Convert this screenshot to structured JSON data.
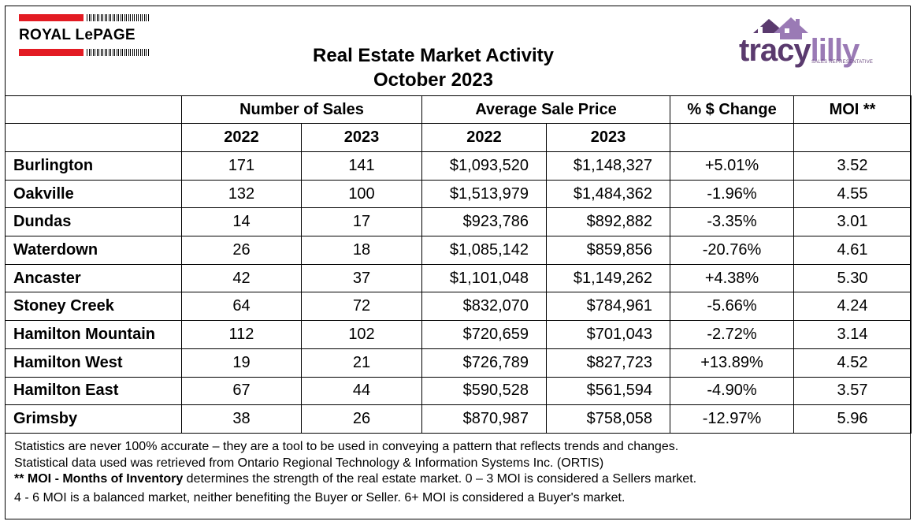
{
  "header": {
    "brand_left": "ROYAL LePAGE",
    "title_line1": "Real Estate Market Activity",
    "title_line2": "October 2023",
    "brand_right_part1": "tracy",
    "brand_right_part2": "lilly",
    "brand_right_sub": "SALES REPRESENTATIVE"
  },
  "table": {
    "group_headers": [
      "Number of Sales",
      "Average Sale Price",
      "% $ Change",
      "MOI **"
    ],
    "year_headers": [
      "2022",
      "2023",
      "2022",
      "2023"
    ],
    "rows": [
      {
        "city": "Burlington",
        "sales_2022": "171",
        "sales_2023": "141",
        "price_2022": "$1,093,520",
        "price_2023": "$1,148,327",
        "change": "+5.01%",
        "moi": "3.52"
      },
      {
        "city": "Oakville",
        "sales_2022": "132",
        "sales_2023": "100",
        "price_2022": "$1,513,979",
        "price_2023": "$1,484,362",
        "change": "-1.96%",
        "moi": "4.55"
      },
      {
        "city": "Dundas",
        "sales_2022": "14",
        "sales_2023": "17",
        "price_2022": "$923,786",
        "price_2023": "$892,882",
        "change": "-3.35%",
        "moi": "3.01"
      },
      {
        "city": "Waterdown",
        "sales_2022": "26",
        "sales_2023": "18",
        "price_2022": "$1,085,142",
        "price_2023": "$859,856",
        "change": "-20.76%",
        "moi": "4.61"
      },
      {
        "city": "Ancaster",
        "sales_2022": "42",
        "sales_2023": "37",
        "price_2022": "$1,101,048",
        "price_2023": "$1,149,262",
        "change": "+4.38%",
        "moi": "5.30"
      },
      {
        "city": "Stoney Creek",
        "sales_2022": "64",
        "sales_2023": "72",
        "price_2022": "$832,070",
        "price_2023": "$784,961",
        "change": "-5.66%",
        "moi": "4.24"
      },
      {
        "city": "Hamilton Mountain",
        "sales_2022": "112",
        "sales_2023": "102",
        "price_2022": "$720,659",
        "price_2023": "$701,043",
        "change": "-2.72%",
        "moi": "3.14"
      },
      {
        "city": "Hamilton West",
        "sales_2022": "19",
        "sales_2023": "21",
        "price_2022": "$726,789",
        "price_2023": "$827,723",
        "change": "+13.89%",
        "moi": "4.52"
      },
      {
        "city": "Hamilton East",
        "sales_2022": "67",
        "sales_2023": "44",
        "price_2022": "$590,528",
        "price_2023": "$561,594",
        "change": "-4.90%",
        "moi": "3.57"
      },
      {
        "city": "Grimsby",
        "sales_2022": "38",
        "sales_2023": "26",
        "price_2022": "$870,987",
        "price_2023": "$758,058",
        "change": "-12.97%",
        "moi": "5.96"
      }
    ]
  },
  "notes": {
    "line1": "Statistics are never 100% accurate – they are a tool to be used in conveying a pattern that reflects trends and changes.",
    "line2": "Statistical data used was retrieved from Ontario Regional Technology & Information Systems Inc. (ORTIS)",
    "line3_bold": "** MOI - Months of Inventory",
    "line3_rest": " determines the strength of the real estate market. 0 – 3 MOI is considered a Sellers market.",
    "line4": "4 - 6 MOI is a balanced market, neither benefiting the Buyer or Seller. 6+ MOI is considered a Buyer's market."
  },
  "colors": {
    "rlp_red": "#e31b23",
    "tracy_purple": "#5a3a6e",
    "lilly_lavender": "#9a7ab5"
  }
}
